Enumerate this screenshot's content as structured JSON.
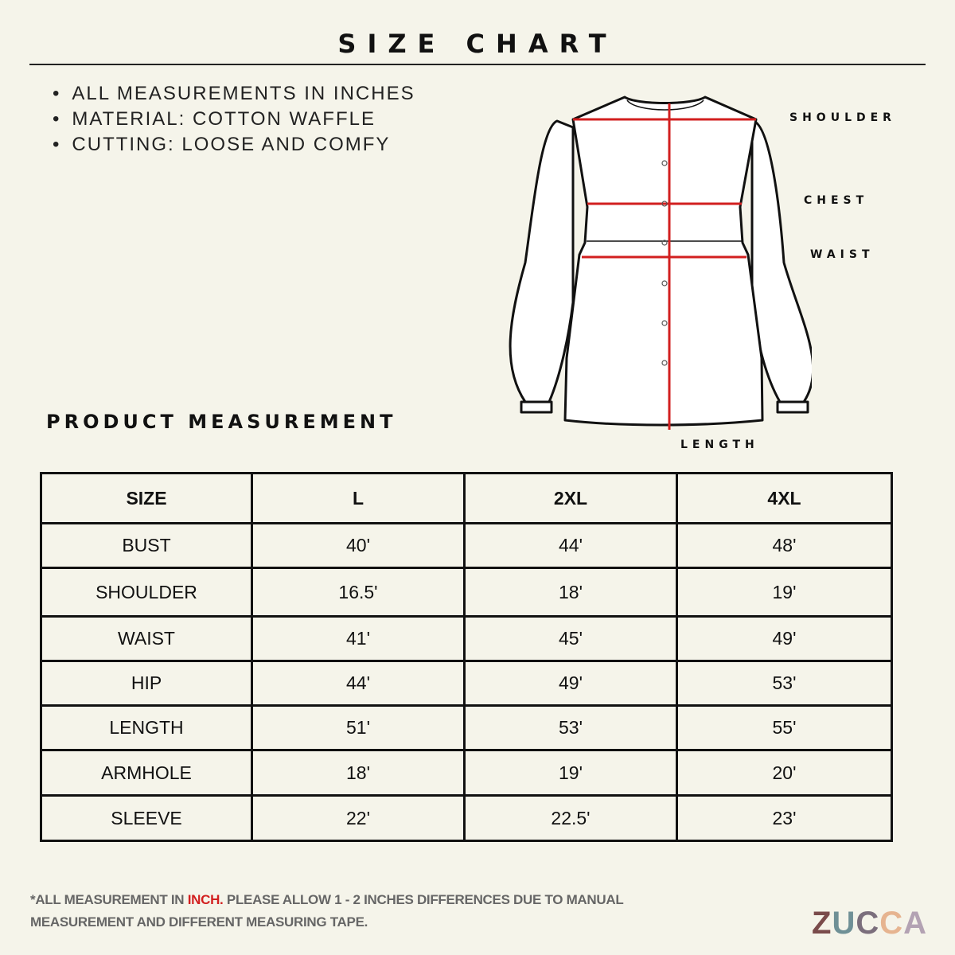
{
  "title": "SIZE CHART",
  "notes": [
    "ALL MEASUREMENTS IN INCHES",
    "MATERIAL: COTTON WAFFLE",
    "CUTTING: LOOSE AND COMFY"
  ],
  "diagram": {
    "labels": {
      "shoulder": "SHOULDER",
      "chest": "CHEST",
      "waist": "WAIST",
      "length": "LENGTH"
    },
    "measure_color": "#d21f1f"
  },
  "section_title": "PRODUCT MEASUREMENT",
  "table": {
    "headers": [
      "SIZE",
      "L",
      "2XL",
      "4XL"
    ],
    "rows": [
      [
        "BUST",
        "40'",
        "44'",
        "48'"
      ],
      [
        "SHOULDER",
        "16.5'",
        "18'",
        "19'"
      ],
      [
        "WAIST",
        "41'",
        "45'",
        "49'"
      ],
      [
        "HIP",
        "44'",
        "49'",
        "53'"
      ],
      [
        "LENGTH",
        "51'",
        "53'",
        "55'"
      ],
      [
        "ARMHOLE",
        "18'",
        "19'",
        "20'"
      ],
      [
        "SLEEVE",
        "22'",
        "22.5'",
        "23'"
      ]
    ]
  },
  "footer": {
    "prefix": "*ALL MEASUREMENT IN ",
    "highlight": "INCH.",
    "rest": " PLEASE ALLOW 1 - 2 INCHES DIFFERENCES DUE TO MANUAL",
    "line2": "MEASUREMENT AND DIFFERENT MEASURING TAPE."
  },
  "logo": {
    "letters": [
      "Z",
      "U",
      "C",
      "C",
      "A"
    ],
    "colors": [
      "#7a4b4b",
      "#6f9096",
      "#7b6e7c",
      "#e6b490",
      "#b3a2b3"
    ]
  }
}
